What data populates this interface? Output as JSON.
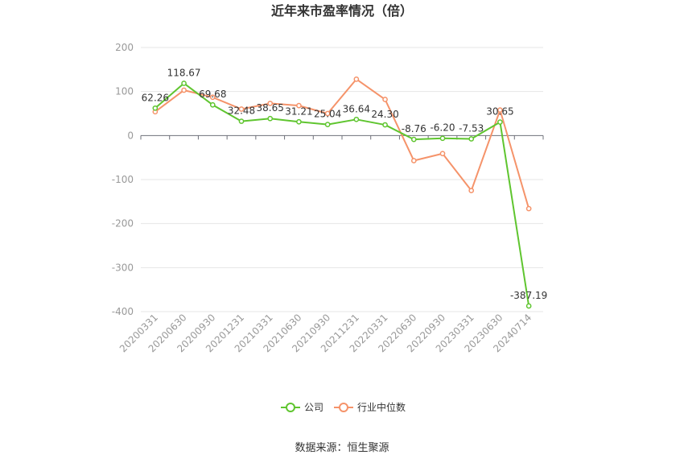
{
  "chart_data": {
    "type": "line",
    "title": "近年来市盈率情况（倍）",
    "categories": [
      "20200331",
      "20200630",
      "20200930",
      "20201231",
      "20210331",
      "20210630",
      "20210930",
      "20211231",
      "20220331",
      "20220630",
      "20220930",
      "20230331",
      "20230630",
      "20240714"
    ],
    "series": [
      {
        "name": "公司",
        "color": "#5fc52f",
        "values": [
          62.26,
          118.67,
          69.68,
          32.48,
          38.65,
          31.21,
          25.04,
          36.64,
          24.3,
          -8.76,
          -6.2,
          -7.53,
          30.65,
          -387.19
        ],
        "labels": [
          "62.26",
          "118.67",
          "69.68",
          "32.48",
          "38.65",
          "31.21",
          "25.04",
          "36.64",
          "24.30",
          "-8.76",
          "-6.20",
          "-7.53",
          "30.65",
          "-387.19"
        ]
      },
      {
        "name": "行业中位数",
        "color": "#f5936a",
        "values": [
          54,
          103,
          87,
          60,
          73,
          68,
          50,
          128,
          82,
          -57,
          -41,
          -125,
          58,
          -166
        ]
      }
    ],
    "yticks": [
      "200",
      "100",
      "0",
      "-100",
      "-200",
      "-300",
      "-400"
    ],
    "ytick_values": [
      200,
      100,
      0,
      -100,
      -200,
      -300,
      -400
    ],
    "ylim": [
      -400,
      200
    ],
    "grid": true,
    "legend_position": "bottom-center"
  },
  "source": "数据来源：恒生聚源"
}
